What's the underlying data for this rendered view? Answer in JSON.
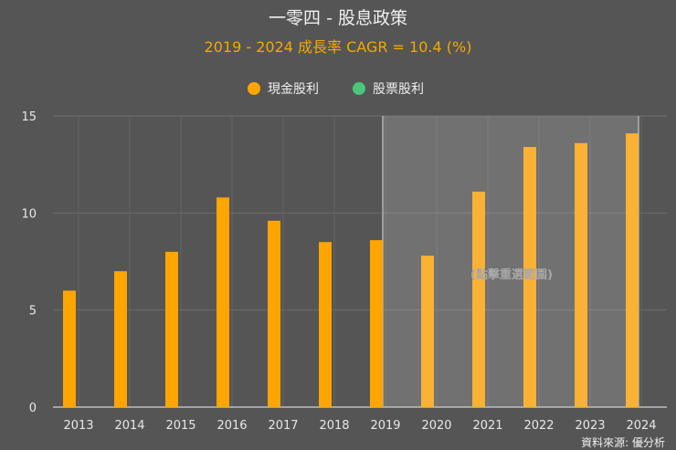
{
  "chart_data": {
    "type": "bar",
    "title": "一零四 - 股息政策",
    "subtitle": "2019 - 2024 成長率 CAGR = 10.4 (%)",
    "categories": [
      "2013",
      "2014",
      "2015",
      "2016",
      "2017",
      "2018",
      "2019",
      "2020",
      "2021",
      "2022",
      "2023",
      "2024"
    ],
    "series": [
      {
        "name": "現金股利",
        "color": "#ffa500",
        "values": [
          6.0,
          7.0,
          8.0,
          10.8,
          9.6,
          8.5,
          8.6,
          7.8,
          11.1,
          13.4,
          13.6,
          14.1
        ]
      },
      {
        "name": "股票股利",
        "color": "#4cc57a",
        "values": [
          0,
          0,
          0,
          0,
          0,
          0,
          0,
          0,
          0,
          0,
          0,
          0
        ]
      }
    ],
    "ylim": [
      0,
      15
    ],
    "yticks": [
      0,
      5,
      10,
      15
    ],
    "grid": true,
    "legend": "top-center",
    "selection": {
      "from": "2019",
      "to": "2024",
      "hint": "(點擊重選範圍)"
    },
    "source": "資料來源: 優分析"
  }
}
